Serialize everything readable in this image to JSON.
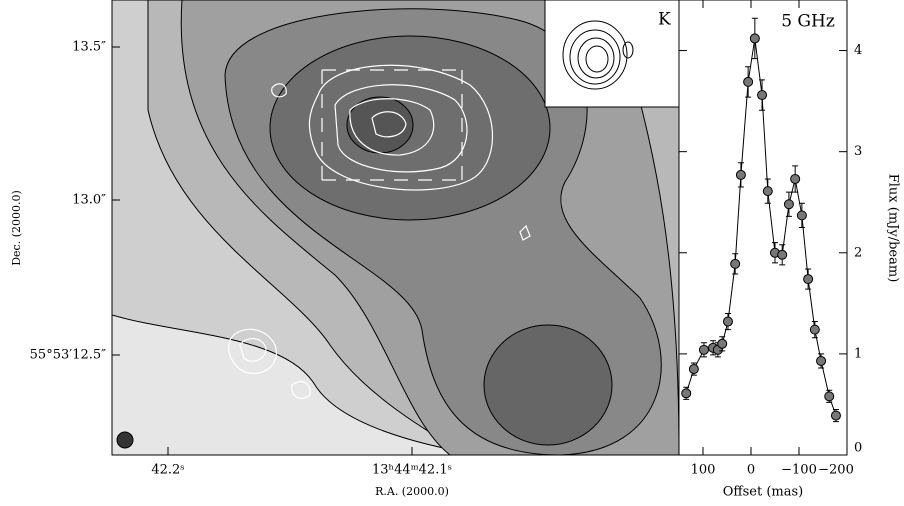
{
  "chart_data": [
    {
      "type": "image",
      "xlabel": "R.A. (2000.0)",
      "ylabel": "Dec. (2000.0)",
      "xtick_labels": [
        "42.2ˢ",
        "13ʰ44ᵐ42.1ˢ"
      ],
      "ytick_labels": [
        "13.5″",
        "13.0″",
        "55°53′12.5″"
      ],
      "inset_label": "K"
    },
    {
      "type": "line",
      "title": "5 GHz",
      "xlabel": "Offset (mas)",
      "ylabel": "Flux (mJy/beam)",
      "xlim": [
        150,
        -200
      ],
      "xticks": [
        100,
        0,
        {
          "value": -100,
          "label": "−100"
        },
        {
          "value": -200,
          "label": "−200"
        }
      ],
      "ylim": [
        0,
        4.5
      ],
      "yticks": [
        0,
        1,
        2,
        3,
        4
      ],
      "x": [
        135,
        119,
        98,
        79,
        69,
        60,
        48,
        33,
        21,
        6,
        -8,
        -23,
        -35,
        -50,
        -65,
        -79,
        -92,
        -106,
        -119,
        -133,
        -146,
        -163,
        -177
      ],
      "series": [
        {
          "name": "5 GHz",
          "color": "#000000",
          "values": [
            0.61,
            0.85,
            1.04,
            1.06,
            1.04,
            1.1,
            1.32,
            1.89,
            2.77,
            3.69,
            4.12,
            3.56,
            2.61,
            2.0,
            1.98,
            2.48,
            2.73,
            2.37,
            1.74,
            1.24,
            0.93,
            0.58,
            0.39
          ],
          "errors": [
            0.06,
            0.06,
            0.07,
            0.07,
            0.07,
            0.07,
            0.08,
            0.1,
            0.12,
            0.15,
            0.2,
            0.15,
            0.12,
            0.1,
            0.1,
            0.12,
            0.13,
            0.12,
            0.1,
            0.08,
            0.07,
            0.06,
            0.06
          ]
        }
      ]
    }
  ]
}
